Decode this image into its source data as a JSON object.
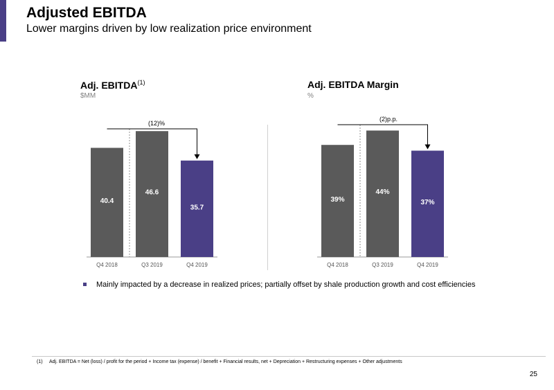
{
  "header": {
    "title": "Adjusted EBITDA",
    "subtitle": "Lower margins driven by low realization price environment"
  },
  "charts": [
    {
      "title": "Adj. EBITDA",
      "title_superscript": "(1)",
      "unit": "$MM",
      "change_label": "(12)%"
    },
    {
      "title": "Adj. EBITDA Margin",
      "unit": "%",
      "change_label": "(2)p.p."
    }
  ],
  "chart_data": [
    {
      "type": "bar",
      "title": "Adj. EBITDA(1)",
      "ylabel": "$MM",
      "categories": [
        "Q4 2018",
        "Q3 2019",
        "Q4 2019"
      ],
      "values": [
        40.4,
        46.6,
        35.7
      ],
      "value_labels": [
        "40.4",
        "46.6",
        "35.7"
      ],
      "ylim": [
        0,
        50
      ],
      "colors": [
        "#5a5a5a",
        "#5a5a5a",
        "#4a3f86"
      ],
      "annotation": "(12)%",
      "grid": false
    },
    {
      "type": "bar",
      "title": "Adj. EBITDA Margin",
      "ylabel": "%",
      "categories": [
        "Q4 2018",
        "Q3 2019",
        "Q4 2019"
      ],
      "values": [
        39,
        44,
        37
      ],
      "value_labels": [
        "39%",
        "44%",
        "37%"
      ],
      "ylim": [
        0,
        47
      ],
      "colors": [
        "#5a5a5a",
        "#5a5a5a",
        "#4a3f86"
      ],
      "annotation": "(2)p.p.",
      "grid": false
    }
  ],
  "bullets": [
    "Mainly impacted by a decrease in realized prices; partially offset by shale production growth and cost efficiencies"
  ],
  "footnote": {
    "number": "(1)",
    "text": "Adj. EBITDA = Net (loss) / profit for the period + Income tax (expense) / benefit + Financial results, net + Depreciation + Restructuring expenses + Other adjustments"
  },
  "page_number": "25",
  "colors": {
    "accent": "#4a3f86",
    "bar_gray": "#5a5a5a"
  }
}
